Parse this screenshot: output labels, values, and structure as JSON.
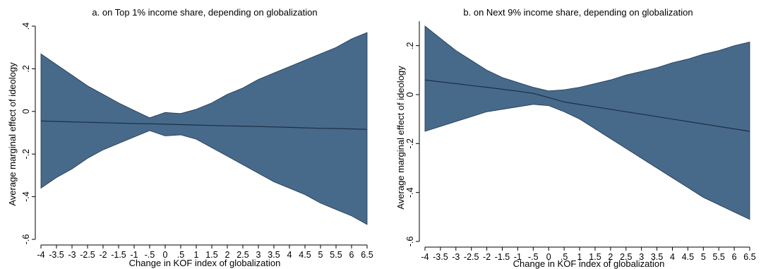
{
  "chart_data": [
    {
      "type": "area",
      "title": "a. on Top 1% income share, depending on globalization",
      "xlabel": "Change in KOF index of globalization",
      "ylabel": "Average marginal effect of ideology",
      "xlim": [
        -4,
        6.5
      ],
      "ylim": [
        -0.6,
        0.4
      ],
      "xticks": [
        -4,
        -3.5,
        -3,
        -2.5,
        -2,
        -1.5,
        -1,
        -0.5,
        0,
        0.5,
        1,
        1.5,
        2,
        2.5,
        3,
        3.5,
        4,
        4.5,
        5,
        5.5,
        6,
        6.5
      ],
      "xtick_labels": [
        "-4",
        "-3.5",
        "-3",
        "-2.5",
        "-2",
        "-1.5",
        "-1",
        "-.5",
        "0",
        ".5",
        "1",
        "1.5",
        "2",
        "2.5",
        "3",
        "3.5",
        "4",
        "4.5",
        "5",
        "5.5",
        "6",
        "6.5"
      ],
      "yticks": [
        -0.6,
        -0.4,
        -0.2,
        0,
        0.2,
        0.4
      ],
      "ytick_labels": [
        "-.6",
        "-.4",
        "-.2",
        "0",
        ".2",
        ".4"
      ],
      "grid": false,
      "x": [
        -4,
        -3.5,
        -3,
        -2.5,
        -2,
        -1.5,
        -1,
        -0.5,
        0,
        0.5,
        1,
        1.5,
        2,
        2.5,
        3,
        3.5,
        4,
        4.5,
        5,
        5.5,
        6,
        6.5
      ],
      "estimate": [
        -0.045,
        -0.047,
        -0.049,
        -0.051,
        -0.053,
        -0.055,
        -0.057,
        -0.058,
        -0.06,
        -0.062,
        -0.064,
        -0.066,
        -0.068,
        -0.069,
        -0.071,
        -0.073,
        -0.075,
        -0.077,
        -0.079,
        -0.08,
        -0.082,
        -0.084
      ],
      "upper": [
        0.27,
        0.22,
        0.17,
        0.12,
        0.08,
        0.04,
        0.005,
        -0.03,
        -0.005,
        -0.01,
        0.01,
        0.04,
        0.08,
        0.11,
        0.15,
        0.18,
        0.21,
        0.24,
        0.27,
        0.3,
        0.34,
        0.37
      ],
      "lower": [
        -0.36,
        -0.31,
        -0.27,
        -0.22,
        -0.18,
        -0.15,
        -0.12,
        -0.09,
        -0.115,
        -0.11,
        -0.13,
        -0.17,
        -0.21,
        -0.25,
        -0.29,
        -0.33,
        -0.36,
        -0.39,
        -0.43,
        -0.46,
        -0.49,
        -0.53
      ]
    },
    {
      "type": "area",
      "title": "b. on Next 9% income share, depending on globalization",
      "xlabel": "Change in KOF index of globalization",
      "ylabel": "Average marginal effect of ideology",
      "xlim": [
        -4,
        6.5
      ],
      "ylim": [
        -0.6,
        0.3
      ],
      "xticks": [
        -4,
        -3.5,
        -3,
        -2.5,
        -2,
        -1.5,
        -1,
        -0.5,
        0,
        0.5,
        1,
        1.5,
        2,
        2.5,
        3,
        3.5,
        4,
        4.5,
        5,
        5.5,
        6,
        6.5
      ],
      "xtick_labels": [
        "-4",
        "-3.5",
        "-3",
        "-2.5",
        "-2",
        "-1.5",
        "-1",
        "-.5",
        "0",
        ".5",
        "1",
        "1.5",
        "2",
        "2.5",
        "3",
        "3.5",
        "4",
        "4.5",
        "5",
        "5.5",
        "6",
        "6.5"
      ],
      "yticks": [
        -0.6,
        -0.4,
        -0.2,
        0,
        0.2
      ],
      "ytick_labels": [
        "-.6",
        "-.4",
        "-.2",
        "0",
        ".2"
      ],
      "grid": false,
      "x": [
        -4,
        -3.5,
        -3,
        -2.5,
        -2,
        -1.5,
        -1,
        -0.5,
        0,
        0.5,
        1,
        1.5,
        2,
        2.5,
        3,
        3.5,
        4,
        4.5,
        5,
        5.5,
        6,
        6.5
      ],
      "estimate": [
        0.06,
        0.052,
        0.045,
        0.037,
        0.03,
        0.022,
        0.014,
        0.005,
        -0.012,
        -0.03,
        -0.04,
        -0.05,
        -0.06,
        -0.07,
        -0.08,
        -0.09,
        -0.1,
        -0.11,
        -0.12,
        -0.13,
        -0.14,
        -0.15
      ],
      "upper": [
        0.28,
        0.23,
        0.18,
        0.14,
        0.1,
        0.07,
        0.05,
        0.03,
        0.015,
        0.02,
        0.03,
        0.045,
        0.06,
        0.08,
        0.095,
        0.11,
        0.13,
        0.145,
        0.165,
        0.18,
        0.2,
        0.215
      ],
      "lower": [
        -0.15,
        -0.13,
        -0.11,
        -0.09,
        -0.07,
        -0.06,
        -0.05,
        -0.04,
        -0.045,
        -0.07,
        -0.1,
        -0.14,
        -0.18,
        -0.22,
        -0.26,
        -0.3,
        -0.34,
        -0.38,
        -0.42,
        -0.45,
        -0.48,
        -0.51
      ]
    }
  ]
}
